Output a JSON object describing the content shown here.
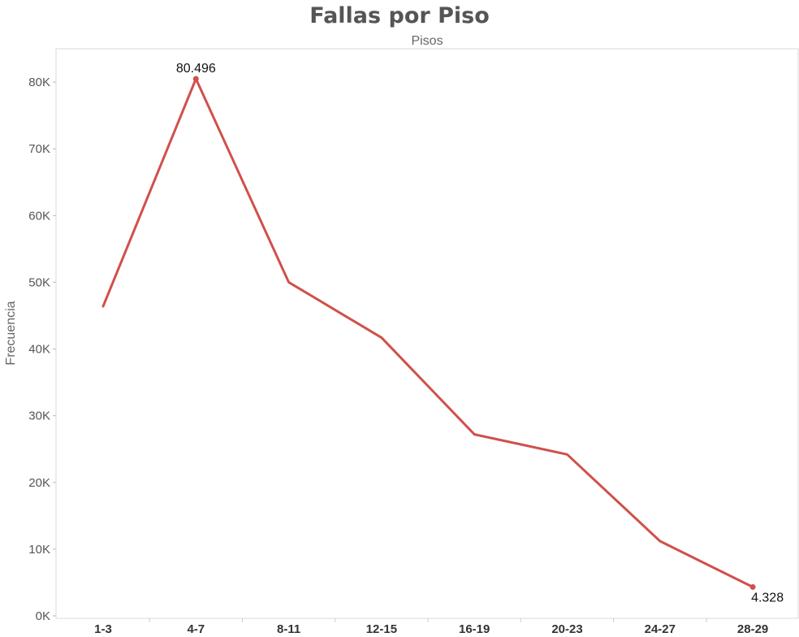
{
  "chart_data": {
    "type": "line",
    "title": "Fallas por Piso",
    "xlabel": "Pisos",
    "ylabel": "Frecuencia",
    "categories": [
      "1-3",
      "4-7",
      "8-11",
      "12-15",
      "16-19",
      "20-23",
      "24-27",
      "28-29"
    ],
    "series": [
      {
        "values": [
          46400,
          80496,
          50000,
          41700,
          27200,
          24200,
          11200,
          4328
        ],
        "color": "#d0504b"
      }
    ],
    "ylim": [
      0,
      85000
    ],
    "yticks": [
      0,
      10000,
      20000,
      30000,
      40000,
      50000,
      60000,
      70000,
      80000
    ],
    "ytick_labels": [
      "0K",
      "10K",
      "20K",
      "30K",
      "40K",
      "50K",
      "60K",
      "70K",
      "80K"
    ],
    "annotations": [
      {
        "category": "4-7",
        "text": "80.496",
        "position": "above"
      },
      {
        "category": "28-29",
        "text": "4.328",
        "position": "below"
      }
    ],
    "grid": false,
    "legend": "none"
  }
}
